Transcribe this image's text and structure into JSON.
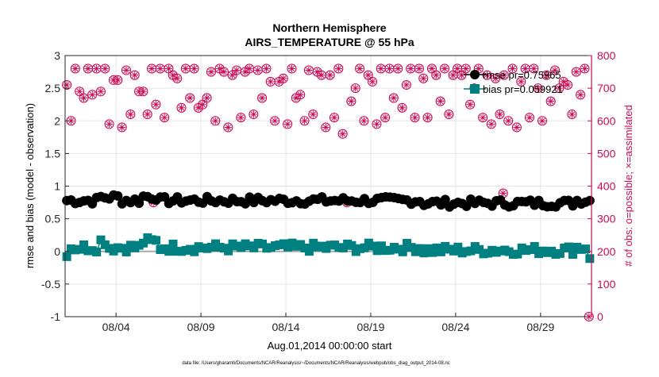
{
  "chart_data": {
    "type": "scatter",
    "title": "Northern Hemisphere",
    "subtitle": "AIRS_TEMPERATURE @ 55 hPa",
    "xlabel": "Aug.01,2014 00:00:00 start",
    "ylabel_left": "rmse and bias (model - observation)",
    "ylabel_right": "# of obs: o=possible; ×=assimilated",
    "footnote": "data file: /Users/gharamti/Documents/NCAR/Reanalysis/~/Documents/NCAR/Reanalysis/webpub/obs_diag_output_2014-08.nc",
    "x_range_days": [
      0.0,
      31.0
    ],
    "ylim_left": [
      -1,
      3
    ],
    "ylim_right": [
      0,
      800
    ],
    "left_ticks": [
      "-1",
      "-0.5",
      "0",
      "0.5",
      "1",
      "1.5",
      "2",
      "2.5",
      "3"
    ],
    "right_ticks": [
      "0",
      "100",
      "200",
      "300",
      "400",
      "500",
      "600",
      "700",
      "800"
    ],
    "x_ticks": [
      {
        "label": "08/04",
        "day": 3
      },
      {
        "label": "08/09",
        "day": 8
      },
      {
        "label": "08/14",
        "day": 13
      },
      {
        "label": "08/19",
        "day": 18
      },
      {
        "label": "08/24",
        "day": 23
      },
      {
        "label": "08/29",
        "day": 28
      }
    ],
    "grid": true,
    "legend_position": "top-right",
    "legend": [
      {
        "label": "rmse pr=0.75965",
        "color": "#000000",
        "marker": "circle"
      },
      {
        "label": "bias pr=0.059921",
        "color": "#008080",
        "marker": "square"
      }
    ],
    "colors": {
      "rmse": "#000000",
      "bias": "#008080",
      "obs": "#cc0a55",
      "zero_line": "#a8a8a8"
    },
    "obs_count_points_day_count": [
      [
        0.1,
        710
      ],
      [
        0.35,
        600
      ],
      [
        0.6,
        760
      ],
      [
        0.85,
        690
      ],
      [
        1.1,
        670
      ],
      [
        1.35,
        760
      ],
      [
        1.6,
        680
      ],
      [
        1.85,
        760
      ],
      [
        2.1,
        690
      ],
      [
        2.35,
        760
      ],
      [
        2.6,
        590
      ],
      [
        2.85,
        725
      ],
      [
        3.1,
        725
      ],
      [
        3.35,
        580
      ],
      [
        3.6,
        755
      ],
      [
        3.85,
        620
      ],
      [
        4.1,
        740
      ],
      [
        4.35,
        690
      ],
      [
        4.6,
        690
      ],
      [
        4.85,
        620
      ],
      [
        5.1,
        760
      ],
      [
        5.35,
        650
      ],
      [
        5.6,
        760
      ],
      [
        5.85,
        610
      ],
      [
        6.1,
        760
      ],
      [
        6.35,
        740
      ],
      [
        6.6,
        730
      ],
      [
        6.85,
        640
      ],
      [
        7.1,
        760
      ],
      [
        7.35,
        670
      ],
      [
        7.6,
        760
      ],
      [
        7.85,
        640
      ],
      [
        8.1,
        650
      ],
      [
        8.35,
        670
      ],
      [
        8.6,
        750
      ],
      [
        8.85,
        600
      ],
      [
        9.1,
        760
      ],
      [
        9.35,
        750
      ],
      [
        9.6,
        580
      ],
      [
        9.85,
        740
      ],
      [
        10.1,
        755
      ],
      [
        10.35,
        610
      ],
      [
        10.6,
        750
      ],
      [
        10.85,
        760
      ],
      [
        11.1,
        620
      ],
      [
        11.35,
        755
      ],
      [
        11.6,
        670
      ],
      [
        11.85,
        760
      ],
      [
        12.1,
        720
      ],
      [
        12.35,
        600
      ],
      [
        12.6,
        720
      ],
      [
        12.85,
        730
      ],
      [
        13.1,
        590
      ],
      [
        13.35,
        760
      ],
      [
        13.6,
        670
      ],
      [
        13.85,
        680
      ],
      [
        14.1,
        600
      ],
      [
        14.35,
        755
      ],
      [
        14.6,
        620
      ],
      [
        14.85,
        750
      ],
      [
        15.1,
        740
      ],
      [
        15.35,
        580
      ],
      [
        15.6,
        740
      ],
      [
        15.85,
        610
      ],
      [
        16.1,
        760
      ],
      [
        16.35,
        560
      ],
      [
        16.6,
        350
      ],
      [
        16.85,
        660
      ],
      [
        17.1,
        700
      ],
      [
        17.35,
        760
      ],
      [
        17.6,
        600
      ],
      [
        17.85,
        740
      ],
      [
        18.1,
        720
      ],
      [
        18.35,
        590
      ],
      [
        18.6,
        760
      ],
      [
        18.85,
        610
      ],
      [
        19.1,
        760
      ],
      [
        19.35,
        670
      ],
      [
        19.6,
        760
      ],
      [
        19.85,
        640
      ],
      [
        20.1,
        710
      ],
      [
        20.35,
        760
      ],
      [
        20.6,
        610
      ],
      [
        20.85,
        760
      ],
      [
        21.1,
        730
      ],
      [
        21.35,
        610
      ],
      [
        21.6,
        760
      ],
      [
        21.85,
        740
      ],
      [
        22.1,
        660
      ],
      [
        22.35,
        760
      ],
      [
        22.6,
        620
      ],
      [
        22.85,
        740
      ],
      [
        23.1,
        760
      ],
      [
        23.35,
        740
      ],
      [
        23.6,
        760
      ],
      [
        23.85,
        650
      ],
      [
        24.1,
        700
      ],
      [
        24.35,
        760
      ],
      [
        24.6,
        610
      ],
      [
        24.85,
        740
      ],
      [
        25.1,
        590
      ],
      [
        25.35,
        730
      ],
      [
        25.6,
        620
      ],
      [
        25.85,
        740
      ],
      [
        26.1,
        600
      ],
      [
        26.35,
        760
      ],
      [
        26.6,
        580
      ],
      [
        26.85,
        720
      ],
      [
        27.1,
        760
      ],
      [
        27.35,
        610
      ],
      [
        27.6,
        760
      ],
      [
        27.85,
        700
      ],
      [
        28.1,
        600
      ],
      [
        28.35,
        740
      ],
      [
        28.6,
        660
      ],
      [
        28.85,
        755
      ],
      [
        29.1,
        700
      ],
      [
        29.35,
        720
      ],
      [
        29.6,
        710
      ],
      [
        29.85,
        620
      ],
      [
        30.1,
        750
      ],
      [
        30.35,
        680
      ],
      [
        30.6,
        760
      ],
      [
        30.85,
        0
      ]
    ],
    "assimilated_extra_points_day_count": [
      [
        5.2,
        350
      ],
      [
        25.8,
        378
      ]
    ]
  }
}
